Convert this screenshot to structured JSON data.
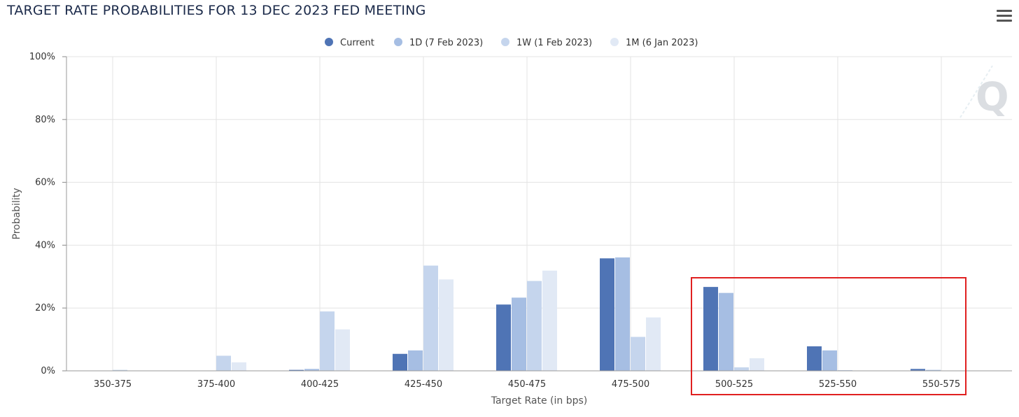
{
  "title": "TARGET RATE PROBABILITIES FOR 13 DEC 2023 FED MEETING",
  "menu_icon": "hamburger-menu-icon",
  "watermark_icon": "cme-q-logo-icon",
  "chart_data": {
    "type": "bar",
    "title": "TARGET RATE PROBABILITIES FOR 13 DEC 2023 FED MEETING",
    "xlabel": "Target Rate (in bps)",
    "ylabel": "Probability",
    "ylim": [
      0,
      100
    ],
    "y_ticks": [
      "0%",
      "20%",
      "40%",
      "60%",
      "80%",
      "100%"
    ],
    "y_tick_values": [
      0,
      20,
      40,
      60,
      80,
      100
    ],
    "grid": true,
    "legend_position": "top-center",
    "categories": [
      "350-375",
      "375-400",
      "400-425",
      "425-450",
      "450-475",
      "475-500",
      "500-525",
      "525-550",
      "550-575"
    ],
    "series": [
      {
        "name": "Current",
        "color": "#4f74b5",
        "values": [
          0,
          0,
          0.3,
          5.4,
          21.1,
          35.8,
          26.7,
          7.8,
          0.6
        ]
      },
      {
        "name": "1D (7 Feb 2023)",
        "color": "#a6bee3",
        "values": [
          0,
          0,
          0.6,
          6.5,
          23.3,
          36.1,
          24.8,
          6.5,
          0.3
        ]
      },
      {
        "name": "1W (1 Feb 2023)",
        "color": "#c5d5ed",
        "values": [
          0.3,
          4.8,
          18.9,
          33.5,
          28.6,
          10.8,
          1.1,
          0.2,
          0
        ]
      },
      {
        "name": "1M (6 Jan 2023)",
        "color": "#e1e9f5",
        "values": [
          0,
          2.7,
          13.2,
          29.1,
          31.9,
          17.0,
          4.0,
          0,
          0
        ]
      }
    ],
    "highlight_box": {
      "categories": [
        "500-525",
        "525-550",
        "550-575"
      ],
      "color": "#e02020"
    }
  }
}
